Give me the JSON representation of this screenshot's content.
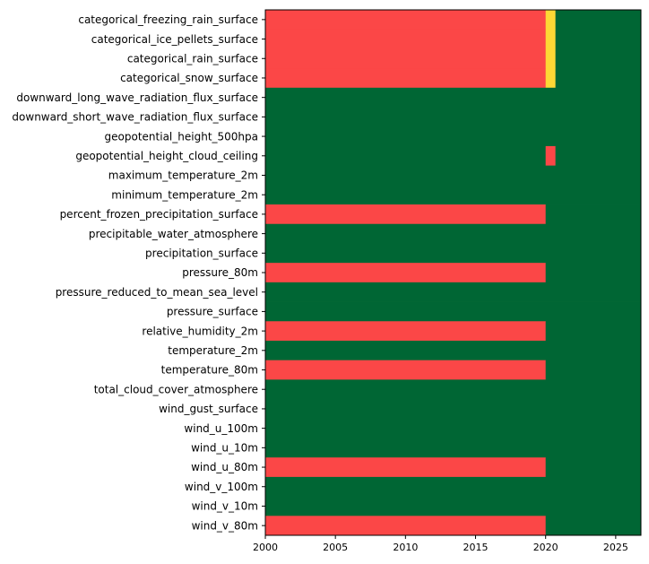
{
  "chart_data": {
    "type": "heatmap",
    "title": "",
    "xlabel": "",
    "ylabel": "",
    "xlim": [
      2000,
      2026.8
    ],
    "x_ticks": [
      2000,
      2005,
      2010,
      2015,
      2020,
      2025
    ],
    "x_tick_labels": [
      "2000",
      "2005",
      "2010",
      "2015",
      "2020",
      "2025"
    ],
    "grid": false,
    "legend": "none",
    "colors": {
      "red": "#fb4747",
      "green": "#006634",
      "yellow": "#fdd835"
    },
    "rows": [
      {
        "label": "categorical_freezing_rain_surface",
        "segments": [
          {
            "start": 2000,
            "end": 2020.0,
            "color": "red"
          },
          {
            "start": 2020.0,
            "end": 2020.7,
            "color": "yellow"
          },
          {
            "start": 2020.7,
            "end": 2026.8,
            "color": "green"
          }
        ]
      },
      {
        "label": "categorical_ice_pellets_surface",
        "segments": [
          {
            "start": 2000,
            "end": 2020.0,
            "color": "red"
          },
          {
            "start": 2020.0,
            "end": 2020.7,
            "color": "yellow"
          },
          {
            "start": 2020.7,
            "end": 2026.8,
            "color": "green"
          }
        ]
      },
      {
        "label": "categorical_rain_surface",
        "segments": [
          {
            "start": 2000,
            "end": 2020.0,
            "color": "red"
          },
          {
            "start": 2020.0,
            "end": 2020.7,
            "color": "yellow"
          },
          {
            "start": 2020.7,
            "end": 2026.8,
            "color": "green"
          }
        ]
      },
      {
        "label": "categorical_snow_surface",
        "segments": [
          {
            "start": 2000,
            "end": 2020.0,
            "color": "red"
          },
          {
            "start": 2020.0,
            "end": 2020.7,
            "color": "yellow"
          },
          {
            "start": 2020.7,
            "end": 2026.8,
            "color": "green"
          }
        ]
      },
      {
        "label": "downward_long_wave_radiation_flux_surface",
        "segments": [
          {
            "start": 2000,
            "end": 2026.8,
            "color": "green"
          }
        ]
      },
      {
        "label": "downward_short_wave_radiation_flux_surface",
        "segments": [
          {
            "start": 2000,
            "end": 2026.8,
            "color": "green"
          }
        ]
      },
      {
        "label": "geopotential_height_500hpa",
        "segments": [
          {
            "start": 2000,
            "end": 2026.8,
            "color": "green"
          }
        ]
      },
      {
        "label": "geopotential_height_cloud_ceiling",
        "segments": [
          {
            "start": 2000,
            "end": 2020.0,
            "color": "green"
          },
          {
            "start": 2020.0,
            "end": 2020.7,
            "color": "red"
          },
          {
            "start": 2020.7,
            "end": 2026.8,
            "color": "green"
          }
        ]
      },
      {
        "label": "maximum_temperature_2m",
        "segments": [
          {
            "start": 2000,
            "end": 2026.8,
            "color": "green"
          }
        ]
      },
      {
        "label": "minimum_temperature_2m",
        "segments": [
          {
            "start": 2000,
            "end": 2026.8,
            "color": "green"
          }
        ]
      },
      {
        "label": "percent_frozen_precipitation_surface",
        "segments": [
          {
            "start": 2000,
            "end": 2020.0,
            "color": "red"
          },
          {
            "start": 2020.0,
            "end": 2026.8,
            "color": "green"
          }
        ]
      },
      {
        "label": "precipitable_water_atmosphere",
        "segments": [
          {
            "start": 2000,
            "end": 2026.8,
            "color": "green"
          }
        ]
      },
      {
        "label": "precipitation_surface",
        "segments": [
          {
            "start": 2000,
            "end": 2026.8,
            "color": "green"
          }
        ]
      },
      {
        "label": "pressure_80m",
        "segments": [
          {
            "start": 2000,
            "end": 2020.0,
            "color": "red"
          },
          {
            "start": 2020.0,
            "end": 2026.8,
            "color": "green"
          }
        ]
      },
      {
        "label": "pressure_reduced_to_mean_sea_level",
        "segments": [
          {
            "start": 2000,
            "end": 2026.8,
            "color": "green"
          }
        ]
      },
      {
        "label": "pressure_surface",
        "segments": [
          {
            "start": 2000,
            "end": 2026.8,
            "color": "green"
          }
        ]
      },
      {
        "label": "relative_humidity_2m",
        "segments": [
          {
            "start": 2000,
            "end": 2020.0,
            "color": "red"
          },
          {
            "start": 2020.0,
            "end": 2026.8,
            "color": "green"
          }
        ]
      },
      {
        "label": "temperature_2m",
        "segments": [
          {
            "start": 2000,
            "end": 2026.8,
            "color": "green"
          }
        ]
      },
      {
        "label": "temperature_80m",
        "segments": [
          {
            "start": 2000,
            "end": 2020.0,
            "color": "red"
          },
          {
            "start": 2020.0,
            "end": 2026.8,
            "color": "green"
          }
        ]
      },
      {
        "label": "total_cloud_cover_atmosphere",
        "segments": [
          {
            "start": 2000,
            "end": 2026.8,
            "color": "green"
          }
        ]
      },
      {
        "label": "wind_gust_surface",
        "segments": [
          {
            "start": 2000,
            "end": 2026.8,
            "color": "green"
          }
        ]
      },
      {
        "label": "wind_u_100m",
        "segments": [
          {
            "start": 2000,
            "end": 2026.8,
            "color": "green"
          }
        ]
      },
      {
        "label": "wind_u_10m",
        "segments": [
          {
            "start": 2000,
            "end": 2026.8,
            "color": "green"
          }
        ]
      },
      {
        "label": "wind_u_80m",
        "segments": [
          {
            "start": 2000,
            "end": 2020.0,
            "color": "red"
          },
          {
            "start": 2020.0,
            "end": 2026.8,
            "color": "green"
          }
        ]
      },
      {
        "label": "wind_v_100m",
        "segments": [
          {
            "start": 2000,
            "end": 2026.8,
            "color": "green"
          }
        ]
      },
      {
        "label": "wind_v_10m",
        "segments": [
          {
            "start": 2000,
            "end": 2026.8,
            "color": "green"
          }
        ]
      },
      {
        "label": "wind_v_80m",
        "segments": [
          {
            "start": 2000,
            "end": 2020.0,
            "color": "red"
          },
          {
            "start": 2020.0,
            "end": 2026.8,
            "color": "green"
          }
        ]
      }
    ]
  }
}
